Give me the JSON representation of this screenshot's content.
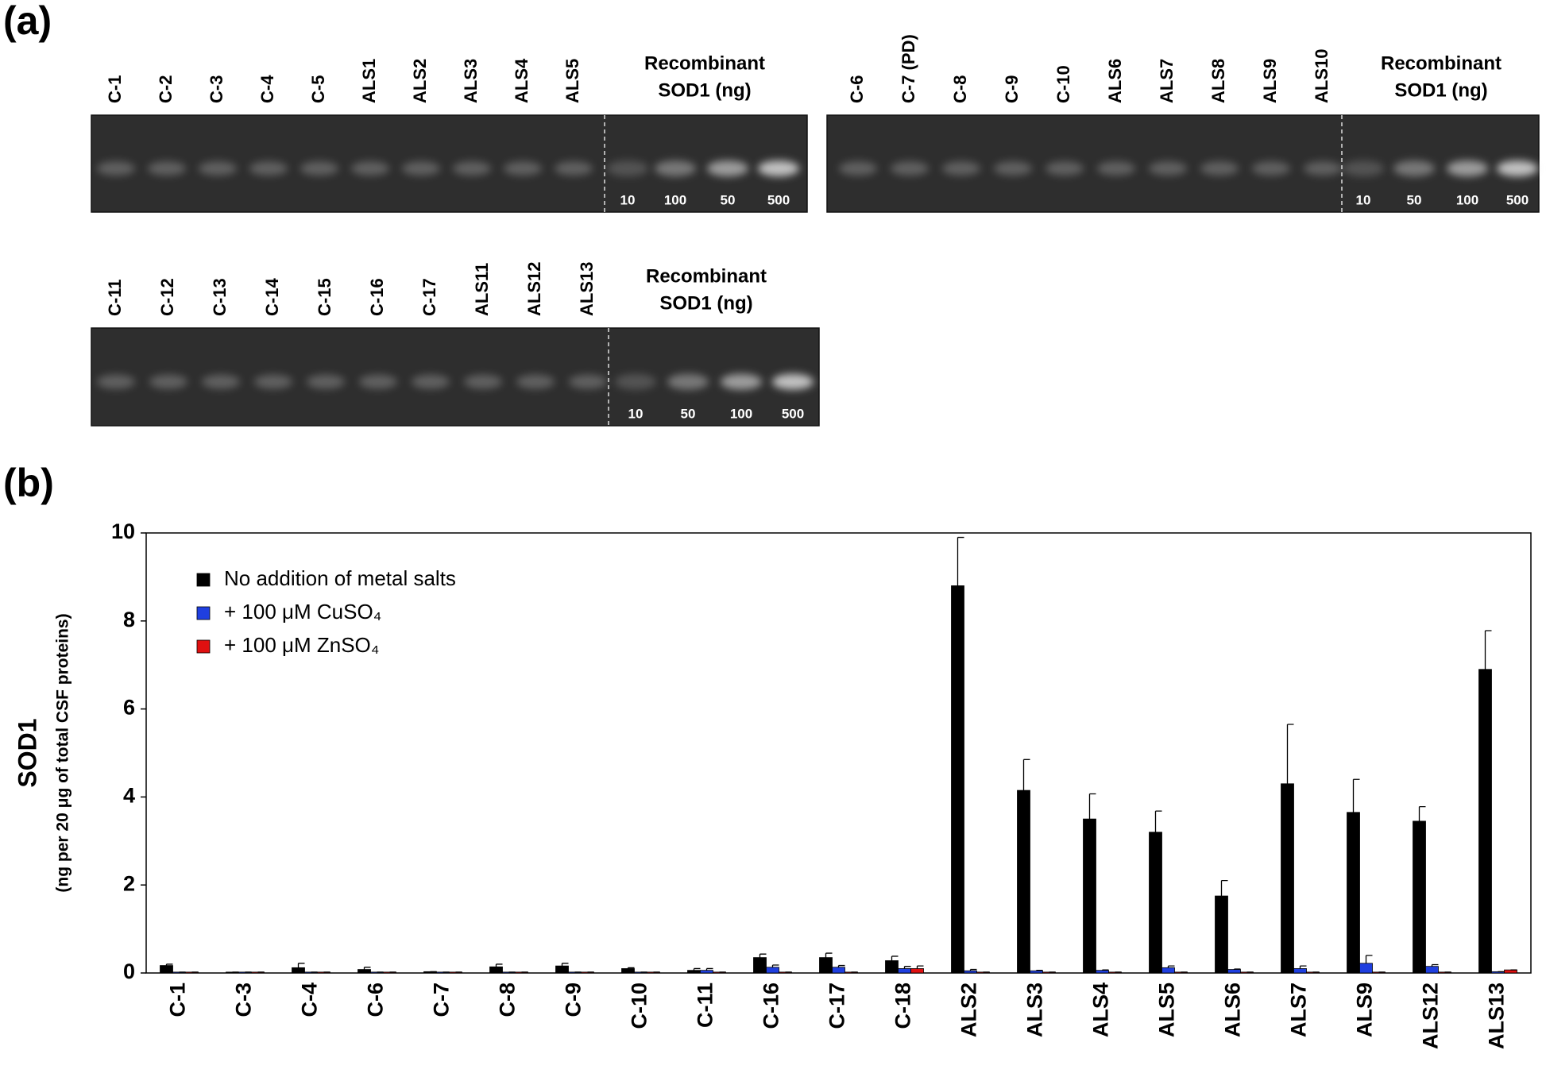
{
  "panel_a": {
    "label": "(a)",
    "gels": [
      {
        "lanes": [
          "C-1",
          "C-2",
          "C-3",
          "C-4",
          "C-5",
          "ALS1",
          "ALS2",
          "ALS3",
          "ALS4",
          "ALS5"
        ],
        "recombinant_label": [
          "Recombinant",
          "SOD1 (ng)"
        ],
        "amounts": [
          "10",
          "100",
          "50",
          "500"
        ]
      },
      {
        "lanes": [
          "C-6",
          "C-7 (PD)",
          "C-8",
          "C-9",
          "C-10",
          "ALS6",
          "ALS7",
          "ALS8",
          "ALS9",
          "ALS10"
        ],
        "recombinant_label": [
          "Recombinant",
          "SOD1 (ng)"
        ],
        "amounts": [
          "10",
          "50",
          "100",
          "500"
        ]
      },
      {
        "lanes": [
          "C-11",
          "C-12",
          "C-13",
          "C-14",
          "C-15",
          "C-16",
          "C-17",
          "ALS11",
          "ALS12",
          "ALS13"
        ],
        "recombinant_label": [
          "Recombinant",
          "SOD1 (ng)"
        ],
        "amounts": [
          "10",
          "50",
          "100",
          "500"
        ]
      }
    ]
  },
  "chart_data": {
    "type": "bar",
    "panel_label": "(b)",
    "y_label": "SOD1",
    "y_sublabel": "(ng per 20 μg of total CSF proteins)",
    "categories": [
      "C-1",
      "C-3",
      "C-4",
      "C-6",
      "C-7",
      "C-8",
      "C-9",
      "C-10",
      "C-11",
      "C-16",
      "C-17",
      "C-18",
      "ALS2",
      "ALS3",
      "ALS4",
      "ALS5",
      "ALS6",
      "ALS7",
      "ALS9",
      "ALS12",
      "ALS13"
    ],
    "series": [
      {
        "name": "No addition of metal salts",
        "color": "#000000",
        "values": [
          0.17,
          0.02,
          0.12,
          0.08,
          0.03,
          0.14,
          0.16,
          0.1,
          0.06,
          0.35,
          0.35,
          0.28,
          8.8,
          4.15,
          3.5,
          3.2,
          1.75,
          4.3,
          3.65,
          3.45,
          6.9
        ],
        "errors": [
          0.03,
          0,
          0.1,
          0.05,
          0,
          0.06,
          0.06,
          0.02,
          0.04,
          0.08,
          0.1,
          0.1,
          1.1,
          0.7,
          0.57,
          0.48,
          0.35,
          1.35,
          0.75,
          0.33,
          0.88
        ]
      },
      {
        "name": "+ 100 μM CuSO₄",
        "color": "#1f3fe0",
        "values": [
          0.02,
          0.02,
          0.02,
          0.02,
          0.02,
          0.02,
          0.02,
          0.02,
          0.06,
          0.13,
          0.13,
          0.1,
          0.05,
          0.05,
          0.06,
          0.12,
          0.08,
          0.1,
          0.22,
          0.15,
          0.03
        ],
        "errors": [
          0,
          0,
          0,
          0,
          0,
          0,
          0,
          0,
          0.04,
          0.05,
          0.04,
          0.05,
          0.03,
          0.01,
          0.01,
          0.04,
          0.01,
          0.06,
          0.18,
          0.04,
          0
        ]
      },
      {
        "name": "+ 100 μM ZnSO₄",
        "color": "#e01010",
        "values": [
          0.02,
          0.02,
          0.02,
          0.02,
          0.02,
          0.02,
          0.02,
          0.02,
          0.02,
          0.02,
          0.02,
          0.1,
          0.02,
          0.02,
          0.02,
          0.02,
          0.02,
          0.02,
          0.02,
          0.02,
          0.07
        ],
        "errors": [
          0,
          0,
          0,
          0,
          0,
          0,
          0,
          0,
          0,
          0,
          0,
          0.06,
          0,
          0,
          0,
          0,
          0,
          0,
          0,
          0,
          0
        ]
      }
    ],
    "ylim": [
      0,
      10
    ],
    "yticks": [
      0,
      2,
      4,
      6,
      8,
      10
    ],
    "grid": false,
    "legend": "upper-left"
  }
}
